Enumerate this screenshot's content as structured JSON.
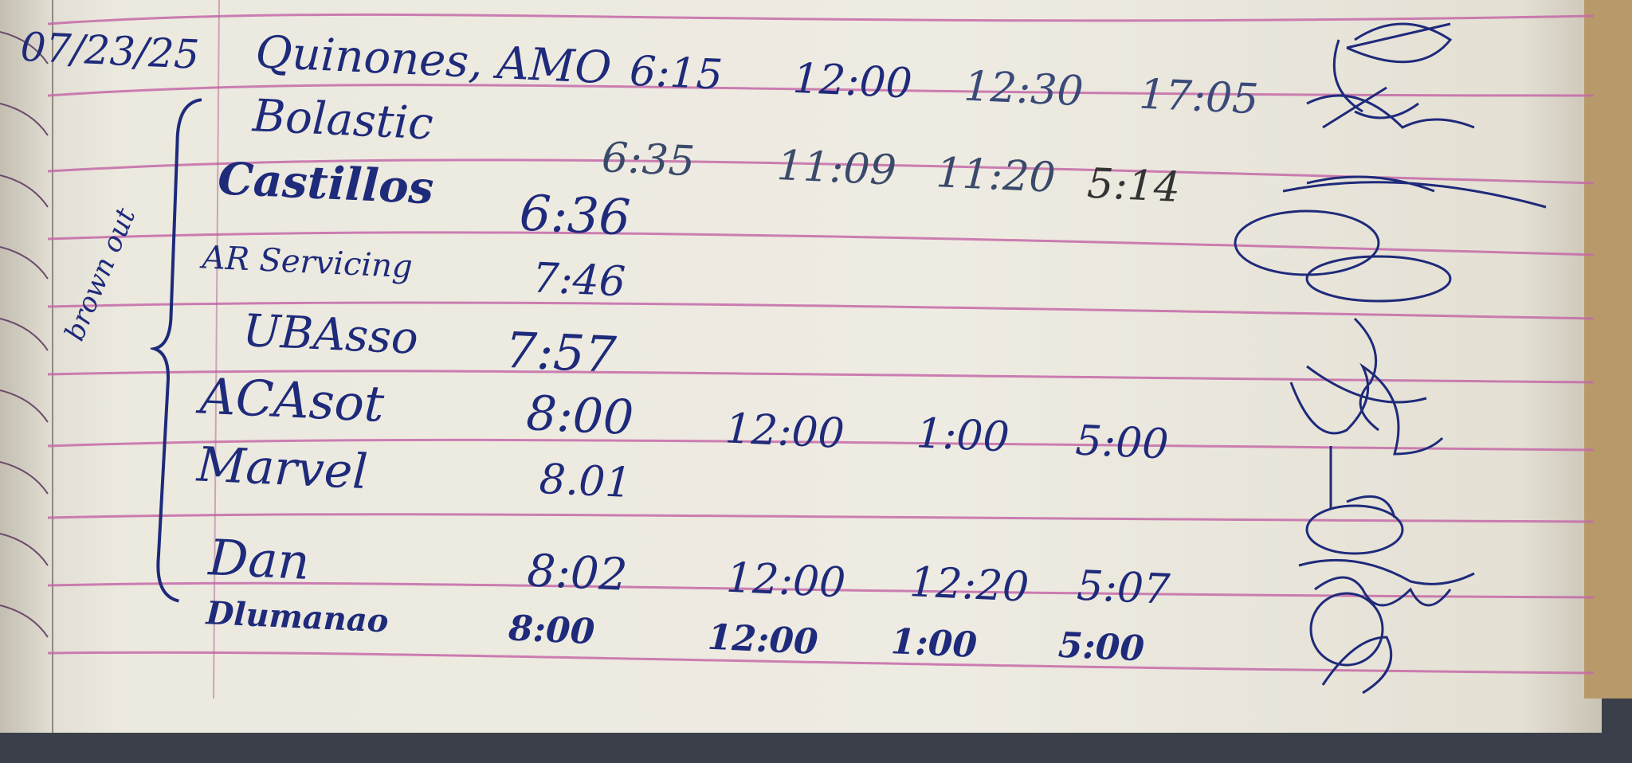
{
  "log": {
    "date": "07/23/25",
    "side_note": "brown out",
    "rows": [
      {
        "name": "Quinones, AMO",
        "time_in": "6:15",
        "lunch_out": "12:00",
        "lunch_in": "12:30",
        "time_out": "17:05"
      },
      {
        "name": "Bolastic",
        "time_in": "6:35",
        "lunch_out": "11:09",
        "lunch_in": "11:20",
        "time_out": "5:14"
      },
      {
        "name": "Castillos",
        "time_in": "6:36",
        "lunch_out": "",
        "lunch_in": "",
        "time_out": ""
      },
      {
        "name": "AR Servicing",
        "time_in": "7:46",
        "lunch_out": "",
        "lunch_in": "",
        "time_out": ""
      },
      {
        "name": "UBAsso",
        "time_in": "7:57",
        "lunch_out": "",
        "lunch_in": "",
        "time_out": ""
      },
      {
        "name": "ACAsot",
        "time_in": "8:00",
        "lunch_out": "12:00",
        "lunch_in": "1:00",
        "time_out": "5:00"
      },
      {
        "name": "Marvel",
        "time_in": "8.01",
        "lunch_out": "",
        "lunch_in": "",
        "time_out": ""
      },
      {
        "name": "Dan",
        "time_in": "8:02",
        "lunch_out": "12:00",
        "lunch_in": "12:20",
        "time_out": "5:07"
      },
      {
        "name": "Dlumanao",
        "time_in": "8:00",
        "lunch_out": "12:00",
        "lunch_in": "1:00",
        "time_out": "5:00"
      }
    ]
  },
  "colors": {
    "ink": "#1e2a7a",
    "rule": "#c56aa8",
    "paper": "#eeebe2"
  }
}
